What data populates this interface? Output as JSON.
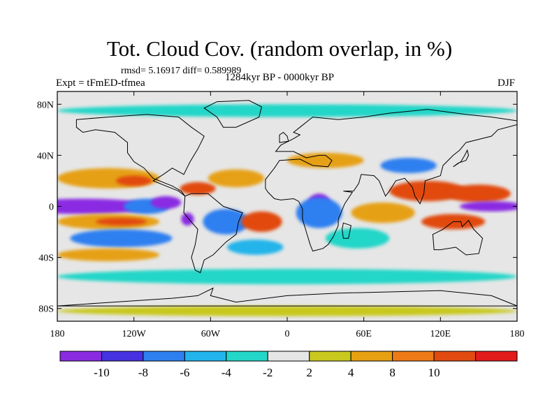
{
  "title": "Tot. Cloud Cov. (random overlap, in %)",
  "stats_text": "rmsd= 5.16917 diff= 0.589989",
  "experiment_label": "Expt = tFmED-tfmea",
  "period_label": "1284kyr BP - 0000kyr BP",
  "season_label": "DJF",
  "map": {
    "projection": "cylindrical equidistant",
    "lon_range": [
      -180,
      180
    ],
    "lat_range": [
      -90,
      90
    ],
    "background_color": "#e6e6e6",
    "coastline_color": "#000000",
    "x_ticks": [
      {
        "value": -180,
        "label": "180"
      },
      {
        "value": -120,
        "label": "120W"
      },
      {
        "value": -60,
        "label": "60W"
      },
      {
        "value": 0,
        "label": "0"
      },
      {
        "value": 60,
        "label": "60E"
      },
      {
        "value": 120,
        "label": "120E"
      },
      {
        "value": 180,
        "label": "180"
      }
    ],
    "y_ticks": [
      {
        "value": 80,
        "label": "80N"
      },
      {
        "value": 40,
        "label": "40N"
      },
      {
        "value": 0,
        "label": "0"
      },
      {
        "value": -40,
        "label": "40S"
      },
      {
        "value": -80,
        "label": "80S"
      }
    ]
  },
  "colorbar": {
    "colors": [
      "#8a2be2",
      "#4632e0",
      "#2e7ff0",
      "#22b4ea",
      "#24d6c8",
      "#e6e6e6",
      "#c8c81e",
      "#e6a012",
      "#ec7a16",
      "#e14a10",
      "#e21b1b"
    ],
    "labels": [
      {
        "index": 1,
        "text": "-10"
      },
      {
        "index": 2,
        "text": "-8"
      },
      {
        "index": 3,
        "text": "-6"
      },
      {
        "index": 4,
        "text": "-4"
      },
      {
        "index": 5,
        "text": "-2"
      },
      {
        "index": 6,
        "text": "2"
      },
      {
        "index": 7,
        "text": "4"
      },
      {
        "index": 8,
        "text": "8"
      },
      {
        "index": 9,
        "text": "10"
      }
    ]
  },
  "anomaly_regions": [
    {
      "name": "eq-pacific-east-negative",
      "level": -12,
      "lon": -160,
      "lat": 0,
      "rlon": 55,
      "rlat": 6
    },
    {
      "name": "eq-pacific-blue",
      "level": -8,
      "lon": -110,
      "lat": 0,
      "rlon": 18,
      "rlat": 6
    },
    {
      "name": "eq-pacific-purple",
      "level": -12,
      "lon": -95,
      "lat": 3,
      "rlon": 12,
      "rlat": 5
    },
    {
      "name": "peru-negative",
      "level": -12,
      "lon": -78,
      "lat": -10,
      "rlon": 5,
      "rlat": 5
    },
    {
      "name": "n-pacific-orange",
      "level": 6,
      "lon": -140,
      "lat": 22,
      "rlon": 40,
      "rlat": 8
    },
    {
      "name": "n-pacific-red",
      "level": 10,
      "lon": -120,
      "lat": 20,
      "rlon": 14,
      "rlat": 4
    },
    {
      "name": "caribbean-red",
      "level": 10,
      "lon": -70,
      "lat": 14,
      "rlon": 14,
      "rlat": 5
    },
    {
      "name": "n-atlantic-orange",
      "level": 6,
      "lon": -40,
      "lat": 22,
      "rlon": 22,
      "rlat": 7
    },
    {
      "name": "s-pacific-orange-band",
      "level": 6,
      "lon": -140,
      "lat": -12,
      "rlon": 40,
      "rlat": 6
    },
    {
      "name": "s-pacific-red-band",
      "level": 10,
      "lon": -130,
      "lat": -12,
      "rlon": 20,
      "rlat": 3
    },
    {
      "name": "s-pacific-blue-band",
      "level": -8,
      "lon": -130,
      "lat": -25,
      "rlon": 40,
      "rlat": 7
    },
    {
      "name": "s-pacific-orange-band-2",
      "level": 6,
      "lon": -140,
      "lat": -38,
      "rlon": 40,
      "rlat": 5
    },
    {
      "name": "s-america-blue",
      "level": -8,
      "lon": -48,
      "lat": -12,
      "rlon": 18,
      "rlat": 10
    },
    {
      "name": "s-atlantic-red",
      "level": 10,
      "lon": -20,
      "lat": -12,
      "rlon": 16,
      "rlat": 8
    },
    {
      "name": "s-atlantic-blue",
      "level": -6,
      "lon": -25,
      "lat": -32,
      "rlon": 22,
      "rlat": 6
    },
    {
      "name": "africa-purple",
      "level": -12,
      "lon": 25,
      "lat": 2,
      "rlon": 9,
      "rlat": 8
    },
    {
      "name": "africa-blue",
      "level": -8,
      "lon": 25,
      "lat": -5,
      "rlon": 18,
      "rlat": 12
    },
    {
      "name": "indian-ocean-teal",
      "level": -3,
      "lon": 55,
      "lat": -25,
      "rlon": 25,
      "rlat": 8
    },
    {
      "name": "indian-ocean-orange",
      "level": 6,
      "lon": 75,
      "lat": -5,
      "rlon": 25,
      "rlat": 8
    },
    {
      "name": "asia-red",
      "level": 10,
      "lon": 110,
      "lat": 12,
      "rlon": 30,
      "rlat": 8
    },
    {
      "name": "w-pacific-red",
      "level": 10,
      "lon": 150,
      "lat": 10,
      "rlon": 25,
      "rlat": 7
    },
    {
      "name": "w-pacific-purple",
      "level": -12,
      "lon": 160,
      "lat": 0,
      "rlon": 25,
      "rlat": 4
    },
    {
      "name": "australia-red",
      "level": 10,
      "lon": 130,
      "lat": -12,
      "rlon": 25,
      "rlat": 6
    },
    {
      "name": "china-blue",
      "level": -8,
      "lon": 95,
      "lat": 32,
      "rlon": 22,
      "rlat": 6
    },
    {
      "name": "mideast-orange",
      "level": 6,
      "lon": 30,
      "lat": 36,
      "rlon": 30,
      "rlat": 6
    },
    {
      "name": "s-ocean-teal",
      "level": -3,
      "lon": 0,
      "lat": -55,
      "rlon": 180,
      "rlat": 6
    },
    {
      "name": "arctic-teal",
      "level": -3,
      "lon": 0,
      "lat": 75,
      "rlon": 180,
      "rlat": 5
    },
    {
      "name": "antarctic-yellow",
      "level": 3,
      "lon": 0,
      "lat": -82,
      "rlon": 180,
      "rlat": 4
    }
  ],
  "coastlines": [
    {
      "name": "north-america",
      "points": [
        [
          -165,
          68
        ],
        [
          -140,
          70
        ],
        [
          -110,
          72
        ],
        [
          -85,
          70
        ],
        [
          -75,
          62
        ],
        [
          -65,
          55
        ],
        [
          -70,
          45
        ],
        [
          -76,
          35
        ],
        [
          -81,
          25
        ],
        [
          -90,
          30
        ],
        [
          -97,
          25
        ],
        [
          -105,
          20
        ],
        [
          -95,
          16
        ],
        [
          -85,
          12
        ],
        [
          -80,
          8
        ],
        [
          -83,
          12
        ],
        [
          -90,
          16
        ],
        [
          -105,
          22
        ],
        [
          -112,
          30
        ],
        [
          -120,
          35
        ],
        [
          -125,
          42
        ],
        [
          -125,
          50
        ],
        [
          -135,
          58
        ],
        [
          -150,
          60
        ],
        [
          -160,
          58
        ],
        [
          -165,
          62
        ]
      ]
    },
    {
      "name": "south-america",
      "points": [
        [
          -80,
          8
        ],
        [
          -75,
          10
        ],
        [
          -62,
          10
        ],
        [
          -50,
          0
        ],
        [
          -35,
          -5
        ],
        [
          -38,
          -12
        ],
        [
          -40,
          -22
        ],
        [
          -48,
          -28
        ],
        [
          -58,
          -38
        ],
        [
          -65,
          -42
        ],
        [
          -68,
          -52
        ],
        [
          -72,
          -50
        ],
        [
          -75,
          -40
        ],
        [
          -72,
          -30
        ],
        [
          -70,
          -18
        ],
        [
          -77,
          -10
        ],
        [
          -81,
          -5
        ]
      ]
    },
    {
      "name": "africa-eurasia",
      "points": [
        [
          -17,
          14
        ],
        [
          -17,
          21
        ],
        [
          -10,
          30
        ],
        [
          -6,
          36
        ],
        [
          10,
          37
        ],
        [
          20,
          32
        ],
        [
          32,
          31
        ],
        [
          35,
          36
        ],
        [
          30,
          40
        ],
        [
          25,
          40
        ],
        [
          15,
          38
        ],
        [
          5,
          43
        ],
        [
          -9,
          43
        ],
        [
          -5,
          48
        ],
        [
          5,
          53
        ],
        [
          10,
          56
        ],
        [
          5,
          58
        ],
        [
          10,
          62
        ],
        [
          20,
          70
        ],
        [
          40,
          68
        ],
        [
          60,
          70
        ],
        [
          80,
          73
        ],
        [
          110,
          76
        ],
        [
          140,
          72
        ],
        [
          160,
          70
        ],
        [
          180,
          67
        ],
        [
          180,
          64
        ],
        [
          165,
          60
        ],
        [
          160,
          55
        ],
        [
          140,
          50
        ],
        [
          135,
          44
        ],
        [
          130,
          40
        ],
        [
          122,
          32
        ],
        [
          120,
          24
        ],
        [
          108,
          20
        ],
        [
          107,
          10
        ],
        [
          104,
          2
        ],
        [
          100,
          8
        ],
        [
          98,
          15
        ],
        [
          92,
          22
        ],
        [
          85,
          20
        ],
        [
          80,
          12
        ],
        [
          77,
          8
        ],
        [
          72,
          20
        ],
        [
          68,
          24
        ],
        [
          58,
          25
        ],
        [
          56,
          18
        ],
        [
          52,
          12
        ],
        [
          44,
          12
        ],
        [
          51,
          11
        ],
        [
          45,
          2
        ],
        [
          40,
          -10
        ],
        [
          40,
          -15
        ],
        [
          36,
          -24
        ],
        [
          32,
          -30
        ],
        [
          28,
          -33
        ],
        [
          20,
          -35
        ],
        [
          18,
          -30
        ],
        [
          15,
          -20
        ],
        [
          12,
          -10
        ],
        [
          12,
          -2
        ],
        [
          9,
          4
        ],
        [
          5,
          6
        ],
        [
          -5,
          5
        ],
        [
          -10,
          6
        ],
        [
          -15,
          11
        ]
      ]
    },
    {
      "name": "australia",
      "points": [
        [
          114,
          -22
        ],
        [
          122,
          -18
        ],
        [
          130,
          -12
        ],
        [
          136,
          -12
        ],
        [
          137,
          -16
        ],
        [
          142,
          -11
        ],
        [
          146,
          -18
        ],
        [
          153,
          -25
        ],
        [
          150,
          -37
        ],
        [
          140,
          -38
        ],
        [
          132,
          -32
        ],
        [
          120,
          -34
        ],
        [
          115,
          -34
        ]
      ]
    },
    {
      "name": "greenland",
      "points": [
        [
          -55,
          82
        ],
        [
          -30,
          83
        ],
        [
          -20,
          78
        ],
        [
          -22,
          70
        ],
        [
          -40,
          62
        ],
        [
          -50,
          62
        ],
        [
          -55,
          70
        ],
        [
          -65,
          77
        ]
      ]
    },
    {
      "name": "madagascar",
      "points": [
        [
          44,
          -13
        ],
        [
          50,
          -15
        ],
        [
          48,
          -25
        ],
        [
          44,
          -25
        ],
        [
          43,
          -18
        ]
      ]
    },
    {
      "name": "antarctica",
      "points": [
        [
          -180,
          -78
        ],
        [
          -150,
          -76
        ],
        [
          -120,
          -74
        ],
        [
          -90,
          -72
        ],
        [
          -70,
          -70
        ],
        [
          -58,
          -64
        ],
        [
          -60,
          -70
        ],
        [
          -40,
          -75
        ],
        [
          0,
          -70
        ],
        [
          40,
          -68
        ],
        [
          80,
          -67
        ],
        [
          120,
          -66
        ],
        [
          160,
          -70
        ],
        [
          180,
          -78
        ]
      ]
    },
    {
      "name": "japan",
      "points": [
        [
          130,
          31
        ],
        [
          134,
          34
        ],
        [
          140,
          36
        ],
        [
          142,
          40
        ],
        [
          141,
          44
        ],
        [
          139,
          40
        ],
        [
          136,
          35
        ]
      ]
    },
    {
      "name": "uk",
      "points": [
        [
          -6,
          50
        ],
        [
          1,
          51
        ],
        [
          0,
          55
        ],
        [
          -3,
          58
        ],
        [
          -6,
          56
        ]
      ]
    }
  ]
}
